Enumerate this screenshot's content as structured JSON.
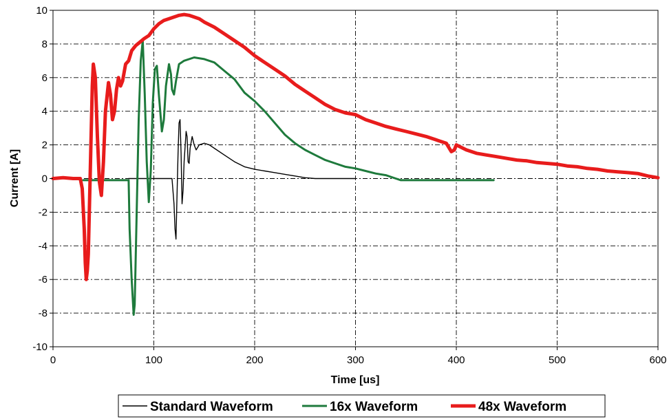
{
  "chart_data": {
    "type": "line",
    "title": "",
    "xlabel": "Time [us]",
    "ylabel": "Current [A]",
    "xlim": [
      0,
      600
    ],
    "ylim": [
      -10,
      10
    ],
    "x_ticks": [
      0,
      100,
      200,
      300,
      400,
      500,
      600
    ],
    "y_ticks": [
      -10,
      -8,
      -6,
      -4,
      -2,
      0,
      2,
      4,
      6,
      8,
      10
    ],
    "grid": true,
    "legend_position": "bottom",
    "series": [
      {
        "name": "Standard Waveform",
        "color": "#000000",
        "points": [
          [
            75,
            0
          ],
          [
            100,
            0
          ],
          [
            118,
            0
          ],
          [
            120,
            -1.5
          ],
          [
            121,
            -3.0
          ],
          [
            122,
            -3.6
          ],
          [
            123,
            -1.0
          ],
          [
            124,
            1.5
          ],
          [
            125,
            3.3
          ],
          [
            126,
            3.5
          ],
          [
            127,
            1.5
          ],
          [
            128,
            -1.5
          ],
          [
            129,
            -0.7
          ],
          [
            130,
            1.0
          ],
          [
            132,
            2.8
          ],
          [
            133,
            2.5
          ],
          [
            134,
            1.0
          ],
          [
            135,
            0.9
          ],
          [
            136,
            1.8
          ],
          [
            138,
            2.5
          ],
          [
            140,
            2.0
          ],
          [
            142,
            1.7
          ],
          [
            145,
            2.0
          ],
          [
            150,
            2.1
          ],
          [
            155,
            2.0
          ],
          [
            160,
            1.8
          ],
          [
            170,
            1.4
          ],
          [
            180,
            1.0
          ],
          [
            190,
            0.7
          ],
          [
            200,
            0.55
          ],
          [
            210,
            0.45
          ],
          [
            220,
            0.35
          ],
          [
            230,
            0.25
          ],
          [
            240,
            0.15
          ],
          [
            250,
            0.05
          ],
          [
            260,
            0.0
          ],
          [
            280,
            0.0
          ],
          [
            300,
            0.0
          ]
        ]
      },
      {
        "name": "16x Waveform",
        "color": "#1e7a3c",
        "points": [
          [
            30,
            -0.1
          ],
          [
            60,
            -0.1
          ],
          [
            75,
            -0.1
          ],
          [
            76,
            -3.0
          ],
          [
            78,
            -6.0
          ],
          [
            80,
            -8.1
          ],
          [
            81,
            -7.5
          ],
          [
            83,
            -2.0
          ],
          [
            85,
            3.5
          ],
          [
            87,
            7.0
          ],
          [
            89,
            8.2
          ],
          [
            91,
            5.0
          ],
          [
            93,
            1.0
          ],
          [
            95,
            -1.4
          ],
          [
            97,
            0.5
          ],
          [
            99,
            4.5
          ],
          [
            101,
            6.5
          ],
          [
            103,
            6.7
          ],
          [
            105,
            5.0
          ],
          [
            107,
            3.5
          ],
          [
            108,
            2.8
          ],
          [
            110,
            3.5
          ],
          [
            112,
            5.5
          ],
          [
            115,
            6.8
          ],
          [
            117,
            6.2
          ],
          [
            118,
            5.3
          ],
          [
            120,
            5.0
          ],
          [
            122,
            5.8
          ],
          [
            125,
            6.8
          ],
          [
            130,
            7.0
          ],
          [
            140,
            7.2
          ],
          [
            150,
            7.1
          ],
          [
            160,
            6.9
          ],
          [
            170,
            6.4
          ],
          [
            180,
            5.9
          ],
          [
            190,
            5.1
          ],
          [
            200,
            4.6
          ],
          [
            210,
            4.0
          ],
          [
            220,
            3.3
          ],
          [
            230,
            2.6
          ],
          [
            240,
            2.1
          ],
          [
            250,
            1.7
          ],
          [
            260,
            1.4
          ],
          [
            270,
            1.1
          ],
          [
            280,
            0.9
          ],
          [
            290,
            0.7
          ],
          [
            300,
            0.6
          ],
          [
            310,
            0.45
          ],
          [
            320,
            0.3
          ],
          [
            330,
            0.2
          ],
          [
            340,
            0.0
          ],
          [
            345,
            -0.1
          ],
          [
            360,
            -0.1
          ],
          [
            380,
            -0.1
          ],
          [
            400,
            -0.1
          ],
          [
            420,
            -0.1
          ],
          [
            437,
            -0.1
          ]
        ]
      },
      {
        "name": "48x Waveform",
        "color": "#e81c1c",
        "points": [
          [
            0,
            0.0
          ],
          [
            10,
            0.05
          ],
          [
            20,
            0.0
          ],
          [
            27,
            0.0
          ],
          [
            29,
            -0.6
          ],
          [
            31,
            -3.0
          ],
          [
            32,
            -5.0
          ],
          [
            33,
            -6.0
          ],
          [
            34,
            -5.5
          ],
          [
            35,
            -4.5
          ],
          [
            37,
            0.5
          ],
          [
            39,
            5.5
          ],
          [
            40,
            6.8
          ],
          [
            42,
            6.0
          ],
          [
            44,
            2.5
          ],
          [
            46,
            -0.2
          ],
          [
            48,
            -1.0
          ],
          [
            50,
            1.0
          ],
          [
            52,
            4.0
          ],
          [
            55,
            5.7
          ],
          [
            57,
            5.0
          ],
          [
            59,
            3.5
          ],
          [
            61,
            4.0
          ],
          [
            63,
            5.3
          ],
          [
            65,
            6.0
          ],
          [
            67,
            5.5
          ],
          [
            69,
            5.8
          ],
          [
            72,
            6.8
          ],
          [
            75,
            7.0
          ],
          [
            78,
            7.6
          ],
          [
            82,
            7.9
          ],
          [
            86,
            8.1
          ],
          [
            90,
            8.3
          ],
          [
            95,
            8.5
          ],
          [
            100,
            8.9
          ],
          [
            105,
            9.2
          ],
          [
            110,
            9.4
          ],
          [
            115,
            9.5
          ],
          [
            120,
            9.6
          ],
          [
            125,
            9.7
          ],
          [
            130,
            9.75
          ],
          [
            135,
            9.7
          ],
          [
            140,
            9.6
          ],
          [
            145,
            9.5
          ],
          [
            150,
            9.3
          ],
          [
            160,
            9.0
          ],
          [
            170,
            8.6
          ],
          [
            180,
            8.2
          ],
          [
            190,
            7.8
          ],
          [
            200,
            7.3
          ],
          [
            210,
            6.9
          ],
          [
            220,
            6.5
          ],
          [
            230,
            6.1
          ],
          [
            240,
            5.6
          ],
          [
            250,
            5.2
          ],
          [
            260,
            4.8
          ],
          [
            270,
            4.4
          ],
          [
            280,
            4.1
          ],
          [
            290,
            3.9
          ],
          [
            300,
            3.8
          ],
          [
            310,
            3.5
          ],
          [
            320,
            3.3
          ],
          [
            330,
            3.1
          ],
          [
            340,
            2.95
          ],
          [
            350,
            2.8
          ],
          [
            360,
            2.65
          ],
          [
            370,
            2.5
          ],
          [
            380,
            2.3
          ],
          [
            390,
            2.1
          ],
          [
            395,
            1.6
          ],
          [
            398,
            1.7
          ],
          [
            400,
            2.0
          ],
          [
            410,
            1.7
          ],
          [
            420,
            1.5
          ],
          [
            430,
            1.4
          ],
          [
            440,
            1.3
          ],
          [
            450,
            1.2
          ],
          [
            460,
            1.1
          ],
          [
            470,
            1.05
          ],
          [
            480,
            0.95
          ],
          [
            490,
            0.9
          ],
          [
            500,
            0.85
          ],
          [
            510,
            0.75
          ],
          [
            520,
            0.7
          ],
          [
            530,
            0.6
          ],
          [
            540,
            0.55
          ],
          [
            550,
            0.45
          ],
          [
            560,
            0.4
          ],
          [
            570,
            0.35
          ],
          [
            580,
            0.3
          ],
          [
            590,
            0.15
          ],
          [
            600,
            0.05
          ]
        ]
      }
    ]
  }
}
